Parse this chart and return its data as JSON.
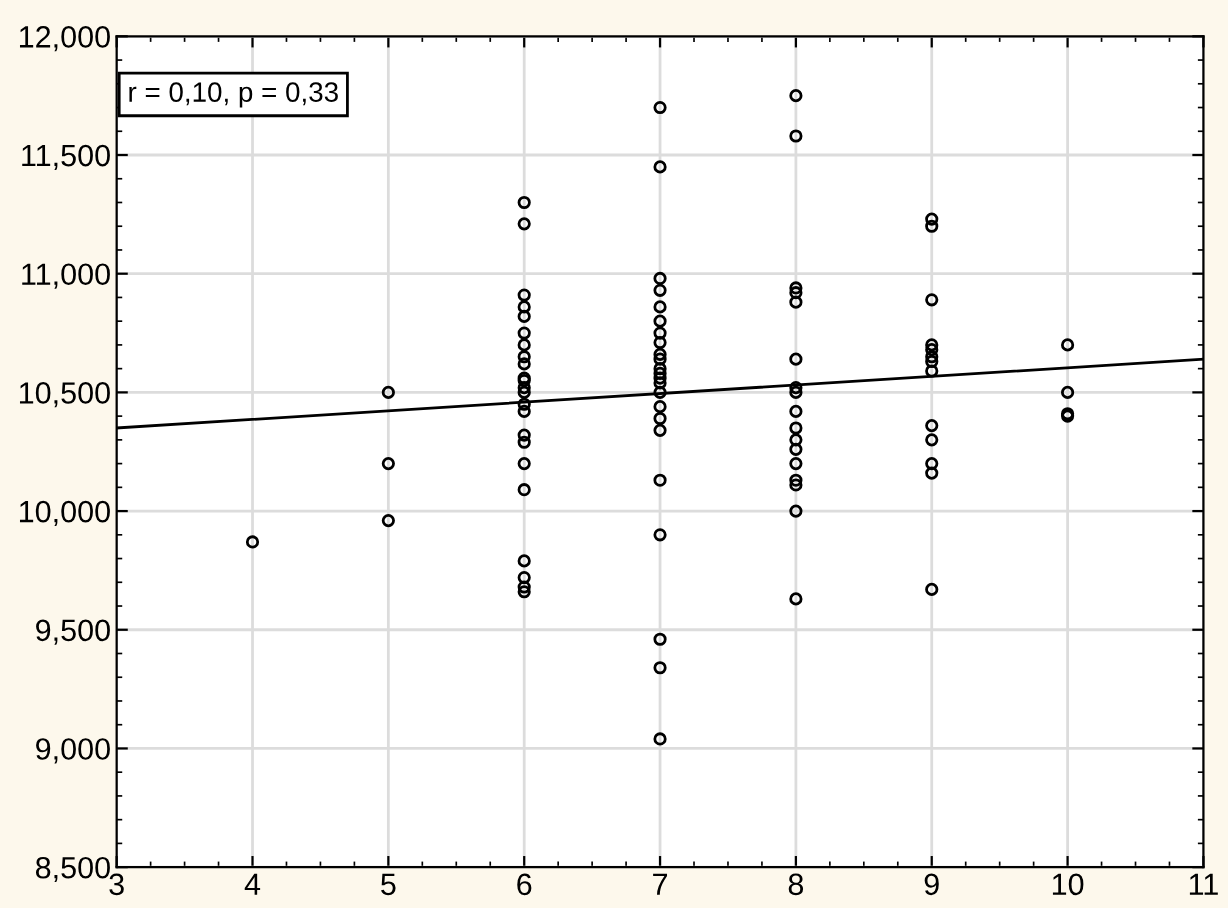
{
  "chart_data": {
    "type": "scatter",
    "annotations": [
      "r = 0,10, p = 0,33"
    ],
    "xlim": [
      3,
      11
    ],
    "xticks": [
      3,
      4,
      5,
      6,
      7,
      8,
      9,
      10,
      11
    ],
    "ylim": [
      8500,
      12000
    ],
    "yticks": [
      {
        "value": 8500,
        "label": "8,500"
      },
      {
        "value": 9000,
        "label": "9,000"
      },
      {
        "value": 9500,
        "label": "9,500"
      },
      {
        "value": 10000,
        "label": "10,000"
      },
      {
        "value": 10500,
        "label": "10,500"
      },
      {
        "value": 11000,
        "label": "11,000"
      },
      {
        "value": 11500,
        "label": "11,500"
      },
      {
        "value": 12000,
        "label": "12,000"
      }
    ],
    "grid": true,
    "series": [
      {
        "marker": "circle",
        "color": "#000000",
        "x": [
          4,
          5,
          5,
          5,
          6,
          6,
          6,
          6,
          6,
          6,
          6,
          6,
          6,
          6,
          6,
          6,
          6,
          6,
          6,
          6,
          6,
          6,
          6,
          6,
          6,
          6,
          6,
          7,
          7,
          7,
          7,
          7,
          7,
          7,
          7,
          7,
          7,
          7,
          7,
          7,
          7,
          7,
          7,
          7,
          7,
          7,
          7,
          7,
          7,
          7,
          8,
          8,
          8,
          8,
          8,
          8,
          8,
          8,
          8,
          8,
          8,
          8,
          8,
          8,
          8,
          8,
          8,
          9,
          9,
          9,
          9,
          9,
          9,
          9,
          9,
          9,
          9,
          9,
          9,
          9,
          10,
          10,
          10,
          10
        ],
        "values": [
          9870,
          9960,
          10200,
          10500,
          11300,
          11210,
          10910,
          10860,
          10820,
          10750,
          10700,
          10650,
          10620,
          10550,
          10520,
          10500,
          10450,
          10420,
          10320,
          10290,
          10200,
          10090,
          9790,
          9720,
          9680,
          9660,
          10560,
          11700,
          11450,
          10980,
          10930,
          10860,
          10800,
          10750,
          10710,
          10660,
          10640,
          10600,
          10580,
          10560,
          10540,
          10500,
          10440,
          10390,
          10340,
          10130,
          9900,
          9460,
          9340,
          9040,
          11750,
          11580,
          10940,
          10920,
          10880,
          10640,
          10520,
          10500,
          10420,
          10350,
          10300,
          10260,
          10200,
          10130,
          10110,
          10000,
          9630,
          11230,
          11200,
          10890,
          10700,
          10680,
          10650,
          10630,
          10590,
          10360,
          10300,
          10200,
          10160,
          9670,
          10700,
          10500,
          10410,
          10400
        ]
      },
      {
        "type": "line",
        "color": "#000000",
        "x": [
          3,
          11
        ],
        "values": [
          10350,
          10640
        ]
      }
    ]
  }
}
